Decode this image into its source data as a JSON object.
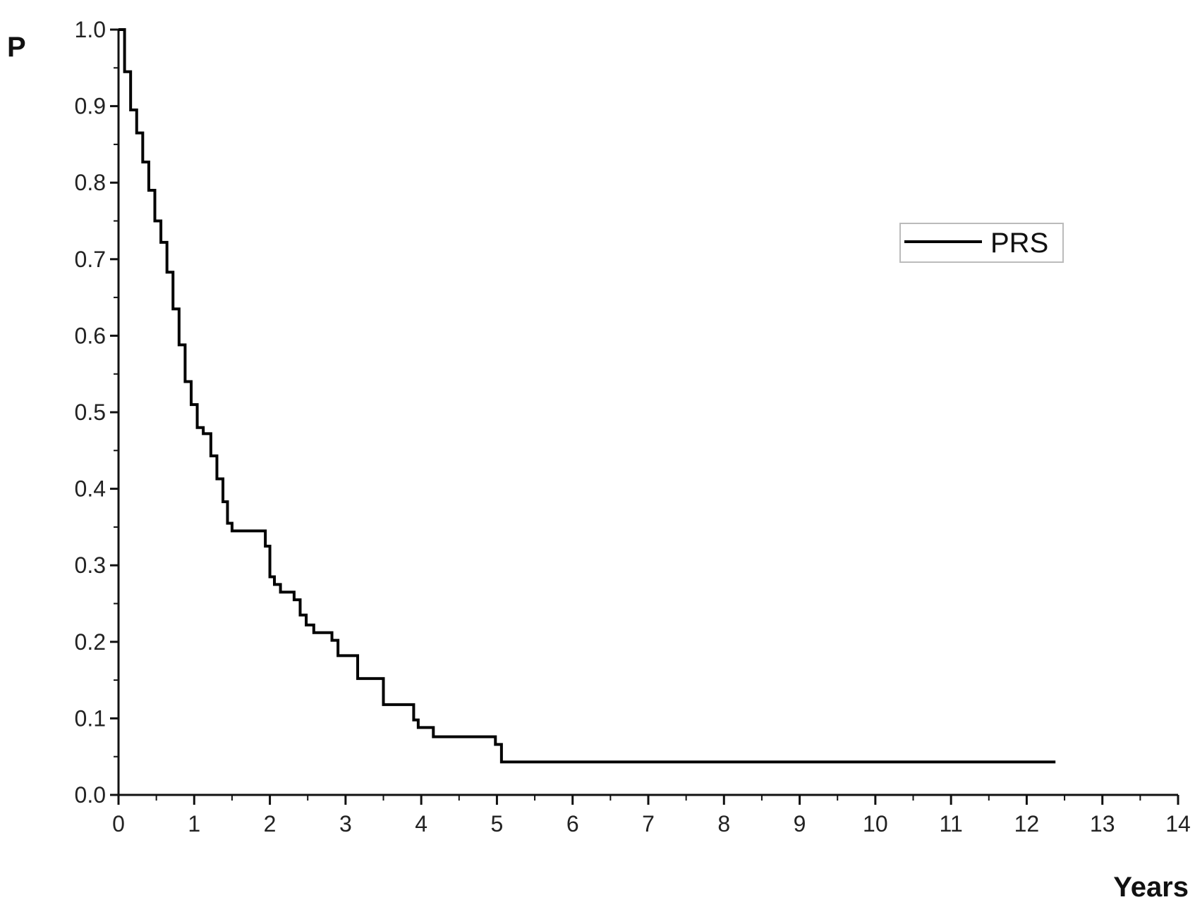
{
  "chart_data": {
    "type": "line",
    "title": "",
    "xlabel": "Years",
    "ylabel": "P",
    "xlim": [
      0,
      14
    ],
    "ylim": [
      0.0,
      1.0
    ],
    "x_ticks": [
      "0",
      "1",
      "2",
      "3",
      "4",
      "5",
      "6",
      "7",
      "8",
      "9",
      "10",
      "11",
      "12",
      "13",
      "14"
    ],
    "y_ticks": [
      "0.0",
      "0.1",
      "0.2",
      "0.3",
      "0.4",
      "0.5",
      "0.6",
      "0.7",
      "0.8",
      "0.9",
      "1.0"
    ],
    "grid": false,
    "legend_position": "top-right",
    "step": true,
    "series": [
      {
        "name": "PRS",
        "color": "#000000",
        "x": [
          0,
          0.08,
          0.16,
          0.24,
          0.32,
          0.4,
          0.48,
          0.56,
          0.64,
          0.72,
          0.8,
          0.88,
          0.96,
          1.04,
          1.12,
          1.22,
          1.3,
          1.38,
          1.44,
          1.5,
          1.58,
          1.94,
          2.0,
          2.06,
          2.14,
          2.32,
          2.4,
          2.48,
          2.58,
          2.82,
          2.9,
          3.16,
          3.5,
          3.9,
          3.96,
          4.16,
          4.98,
          5.06,
          12.38
        ],
        "y": [
          1.0,
          0.945,
          0.895,
          0.865,
          0.827,
          0.79,
          0.75,
          0.722,
          0.683,
          0.635,
          0.588,
          0.54,
          0.51,
          0.48,
          0.472,
          0.443,
          0.413,
          0.383,
          0.355,
          0.345,
          0.345,
          0.325,
          0.285,
          0.275,
          0.265,
          0.255,
          0.235,
          0.222,
          0.212,
          0.202,
          0.182,
          0.152,
          0.118,
          0.098,
          0.088,
          0.076,
          0.066,
          0.043,
          0.043
        ]
      }
    ]
  }
}
